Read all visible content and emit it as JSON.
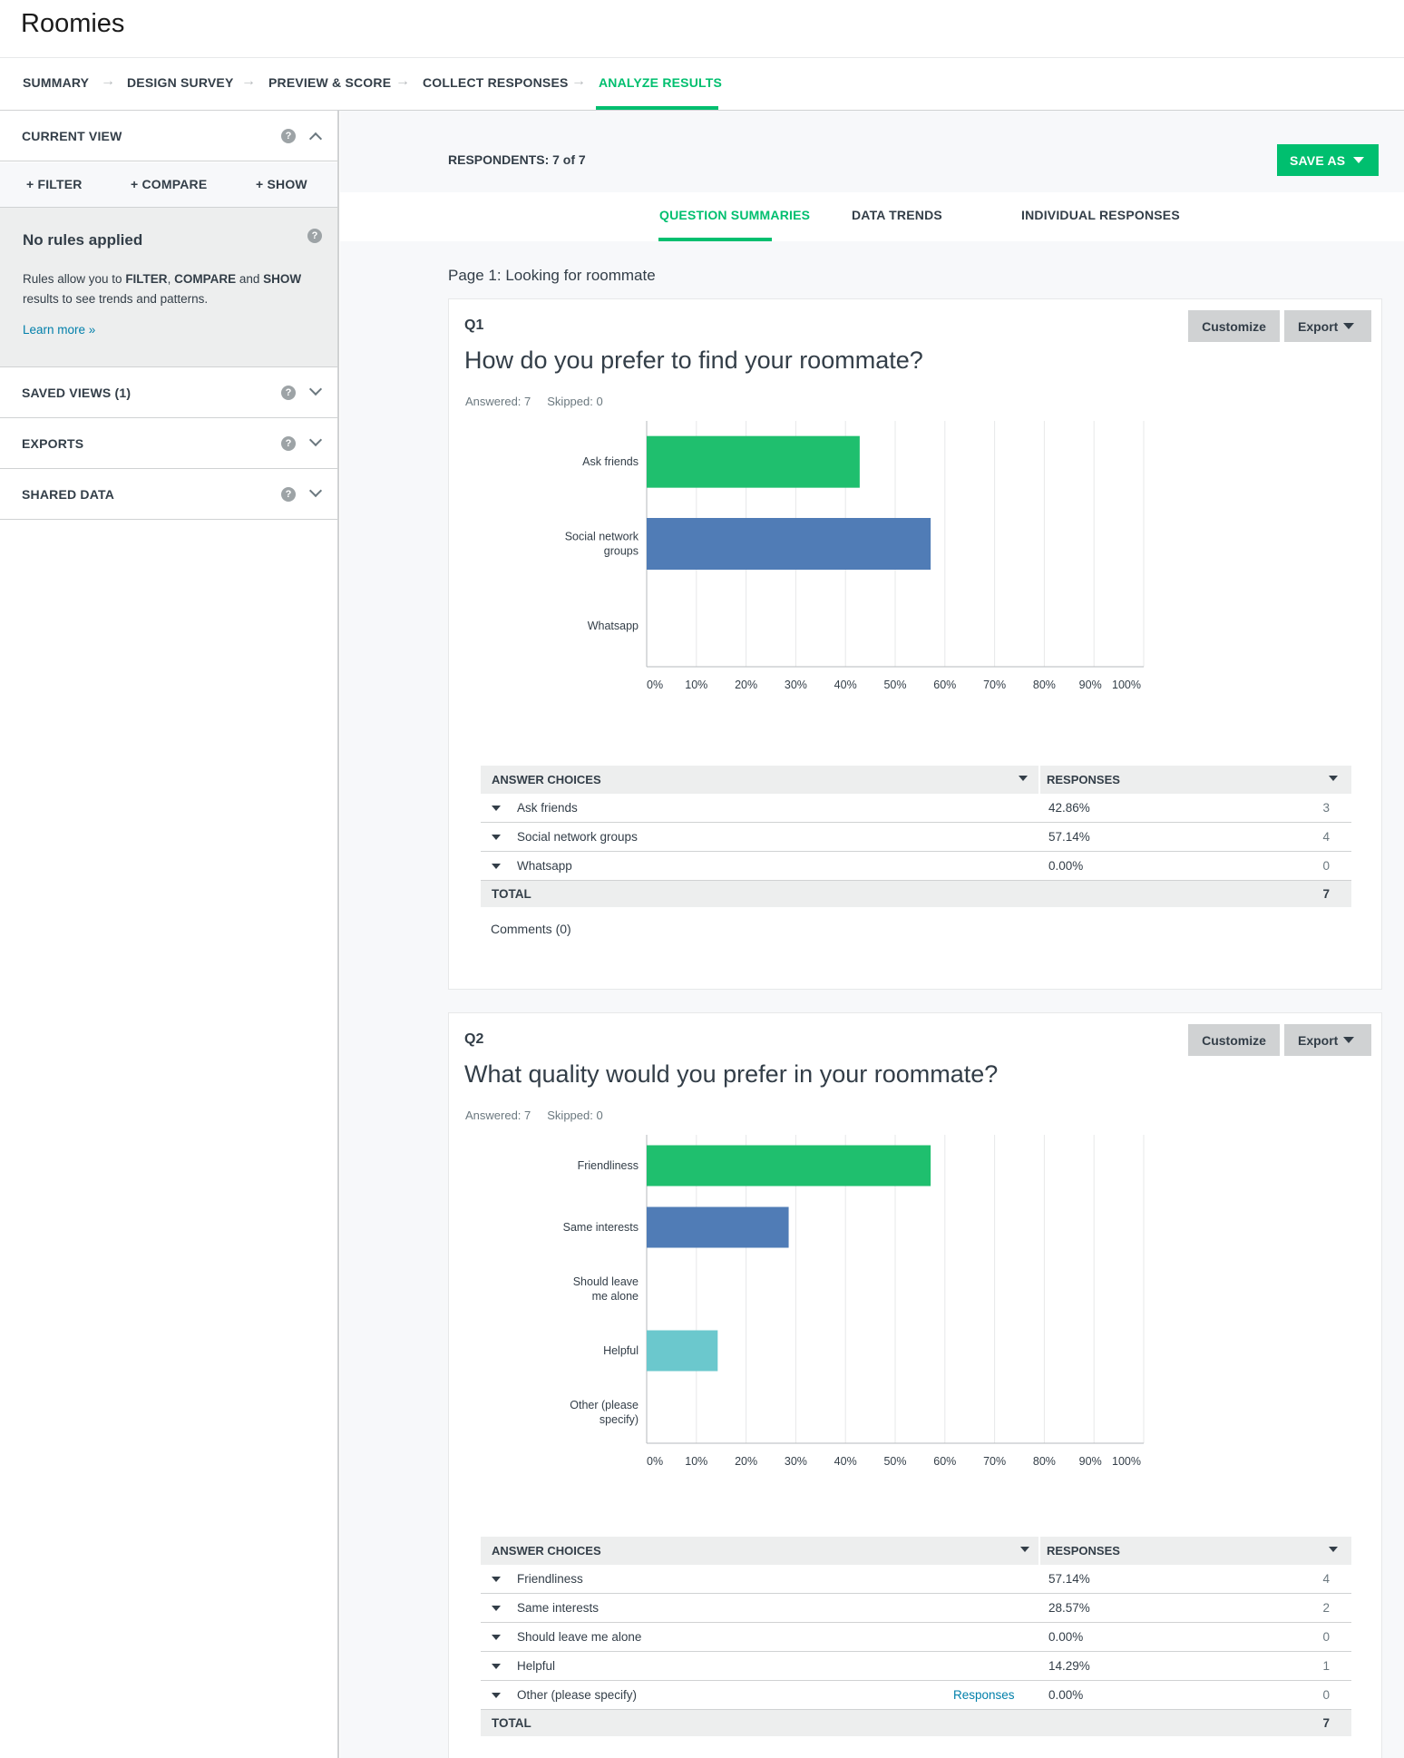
{
  "app": {
    "title": "Roomies"
  },
  "steps": [
    {
      "label": "SUMMARY"
    },
    {
      "label": "DESIGN SURVEY"
    },
    {
      "label": "PREVIEW & SCORE"
    },
    {
      "label": "COLLECT RESPONSES"
    },
    {
      "label": "ANALYZE RESULTS",
      "active": true
    }
  ],
  "sidebar": {
    "current_view": "CURRENT VIEW",
    "filter": "+ FILTER",
    "compare": "+ COMPARE",
    "show": "+ SHOW",
    "rules_title": "No rules applied",
    "rules_desc_1": "Rules allow you to ",
    "rules_desc_filter": "FILTER",
    "rules_desc_2": ", ",
    "rules_desc_compare": "COMPARE",
    "rules_desc_3": " and ",
    "rules_desc_show": "SHOW",
    "rules_desc_4": " results to see trends and patterns.",
    "learn_more": "Learn more »",
    "saved_views": "SAVED VIEWS (1)",
    "exports": "EXPORTS",
    "shared_data": "SHARED DATA",
    "help_glyph": "?"
  },
  "main": {
    "respondents": "RESPONDENTS: 7 of 7",
    "save_as": "SAVE AS",
    "tabs": [
      {
        "label": "QUESTION SUMMARIES",
        "active": true
      },
      {
        "label": "DATA TRENDS"
      },
      {
        "label": "INDIVIDUAL RESPONSES"
      }
    ],
    "page_label": "Page 1: Looking for roommate"
  },
  "buttons": {
    "customize": "Customize",
    "export": "Export"
  },
  "table_labels": {
    "answer_choices": "ANSWER CHOICES",
    "responses": "RESPONSES",
    "total": "TOTAL",
    "responses_link": "Responses"
  },
  "colors": {
    "accent": "#00bf6f",
    "bar_green": "#1fbf6e",
    "bar_blue": "#507cb6",
    "bar_teal": "#6bc8cd"
  },
  "q1": {
    "num": "Q1",
    "title": "How do you prefer to find your roommate?",
    "answered": "Answered: 7",
    "skipped": "Skipped: 0",
    "rows": [
      {
        "choice": "Ask friends",
        "pct": "42.86%",
        "count": "3"
      },
      {
        "choice": "Social network groups",
        "pct": "57.14%",
        "count": "4"
      },
      {
        "choice": "Whatsapp",
        "pct": "0.00%",
        "count": "0"
      }
    ],
    "total": "7",
    "comments": "Comments (0)"
  },
  "q2": {
    "num": "Q2",
    "title": "What quality would you prefer in your roommate?",
    "answered": "Answered: 7",
    "skipped": "Skipped: 0",
    "rows": [
      {
        "choice": "Friendliness",
        "pct": "57.14%",
        "count": "4"
      },
      {
        "choice": "Same interests",
        "pct": "28.57%",
        "count": "2"
      },
      {
        "choice": "Should leave me alone",
        "pct": "0.00%",
        "count": "0"
      },
      {
        "choice": "Helpful",
        "pct": "14.29%",
        "count": "1"
      },
      {
        "choice": "Other (please specify)",
        "pct": "0.00%",
        "count": "0",
        "link": true
      }
    ],
    "total": "7"
  },
  "chart_data": [
    {
      "type": "bar",
      "orientation": "horizontal",
      "categories": [
        [
          "Ask friends"
        ],
        [
          "Social network",
          "groups"
        ],
        [
          "Whatsapp"
        ]
      ],
      "values": [
        42.86,
        57.14,
        0
      ],
      "colors": [
        "#1fbf6e",
        "#507cb6",
        "#6bc8cd"
      ],
      "xlim": [
        0,
        100
      ],
      "ticks": [
        "0%",
        "10%",
        "20%",
        "30%",
        "40%",
        "50%",
        "60%",
        "70%",
        "80%",
        "90%",
        "100%"
      ],
      "grid": true
    },
    {
      "type": "bar",
      "orientation": "horizontal",
      "categories": [
        [
          "Friendliness"
        ],
        [
          "Same interests"
        ],
        [
          "Should leave",
          "me alone"
        ],
        [
          "Helpful"
        ],
        [
          "Other (please",
          "specify)"
        ]
      ],
      "values": [
        57.14,
        28.57,
        0,
        14.29,
        0
      ],
      "colors": [
        "#1fbf6e",
        "#507cb6",
        "#6bc8cd",
        "#6bc8cd",
        "#6bc8cd"
      ],
      "xlim": [
        0,
        100
      ],
      "ticks": [
        "0%",
        "10%",
        "20%",
        "30%",
        "40%",
        "50%",
        "60%",
        "70%",
        "80%",
        "90%",
        "100%"
      ],
      "grid": true
    }
  ]
}
